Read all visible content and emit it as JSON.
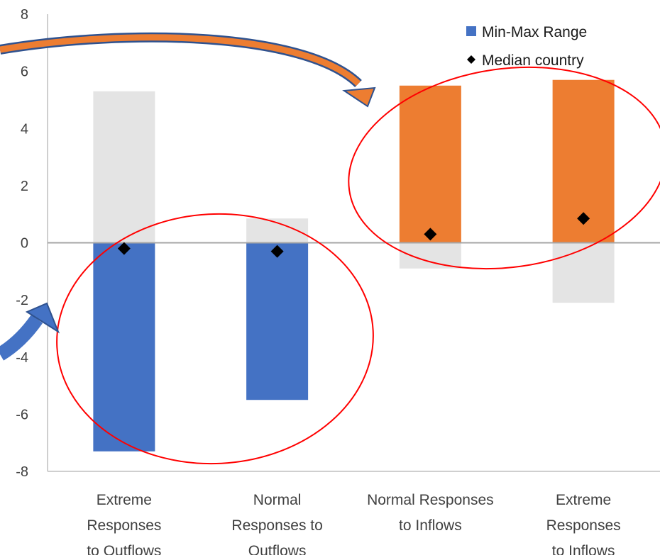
{
  "chart_data": {
    "type": "bar",
    "categories": [
      [
        "Extreme",
        "Responses",
        "to Outflows"
      ],
      [
        "Normal",
        "Responses to",
        "Outflows"
      ],
      [
        "Normal Responses",
        "to Inflows"
      ],
      [
        "Extreme",
        "Responses",
        "to Inflows"
      ]
    ],
    "series": [
      {
        "name": "Min-Max Range",
        "min": [
          -7.3,
          -5.5,
          0,
          0
        ],
        "max": [
          0,
          0,
          5.5,
          5.7
        ],
        "colors": [
          "#4472c4",
          "#4472c4",
          "#ed7d31",
          "#ed7d31"
        ]
      },
      {
        "min": [
          0,
          0,
          -0.9,
          -2.1
        ],
        "max": [
          5.3,
          0.85,
          0,
          0
        ],
        "color": "#e4e4e4"
      },
      {
        "name": "Median country",
        "values": [
          -0.2,
          -0.3,
          0.3,
          0.85
        ],
        "marker": "diamond",
        "color": "#000000"
      }
    ],
    "yticks": [
      8,
      6,
      4,
      2,
      0,
      -2,
      -4,
      -6,
      -8
    ],
    "ylim": [
      -8,
      8
    ],
    "legend_position": "top-right",
    "grid": false,
    "annotations": {
      "ellipse_color": "#ff0000",
      "arrow_left_color": "#4472c4",
      "arrow_right_color": "#ed7d31"
    }
  }
}
